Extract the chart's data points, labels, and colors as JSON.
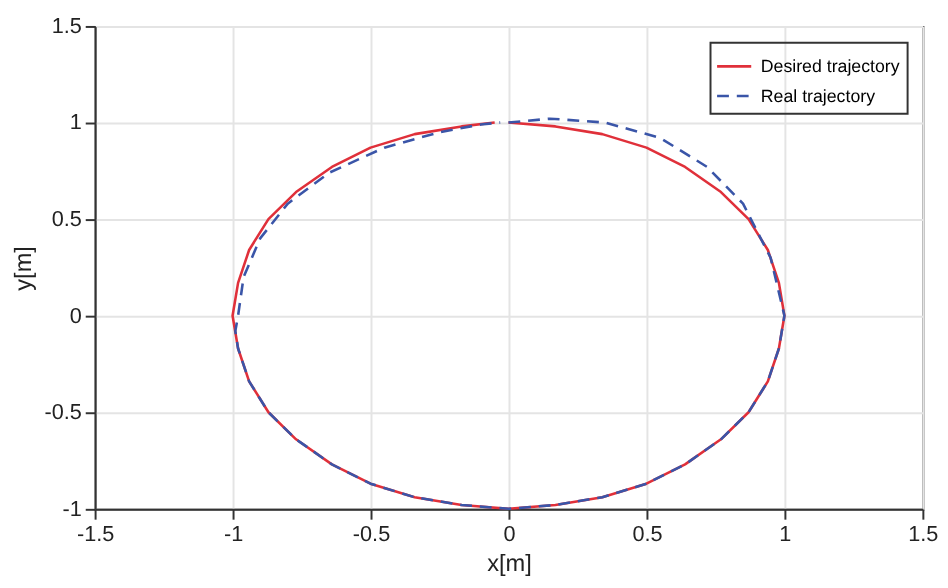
{
  "chart_data": {
    "type": "line",
    "xlabel": "x[m]",
    "ylabel": "y[m]",
    "xlim": [
      -1.5,
      1.5
    ],
    "xticks": [
      -1.5,
      -1,
      -0.5,
      0,
      0.5,
      1,
      1.5
    ],
    "ylim": [
      -1,
      1.5
    ],
    "yticks": [
      -1,
      -0.5,
      0,
      0.5,
      1,
      1.5
    ],
    "grid": true,
    "legend": "top right",
    "series": [
      {
        "name": "Desired trajectory",
        "color": "#e0303a",
        "line_style": "solid",
        "x": [
          0,
          0.17,
          0.34,
          0.5,
          0.64,
          0.77,
          0.87,
          0.94,
          0.98,
          1,
          0.98,
          0.94,
          0.87,
          0.77,
          0.64,
          0.5,
          0.34,
          0.17,
          0,
          -0.17,
          -0.34,
          -0.5,
          -0.64,
          -0.77,
          -0.87,
          -0.94,
          -0.98,
          -1,
          -0.98,
          -0.94,
          -0.87,
          -0.77,
          -0.64,
          -0.5,
          -0.34,
          -0.17,
          -0.05
        ],
        "values": [
          1,
          0.98,
          0.94,
          0.87,
          0.77,
          0.64,
          0.5,
          0.34,
          0.17,
          0,
          -0.17,
          -0.34,
          -0.5,
          -0.64,
          -0.77,
          -0.87,
          -0.94,
          -0.98,
          -1,
          -0.98,
          -0.94,
          -0.87,
          -0.77,
          -0.64,
          -0.5,
          -0.34,
          -0.17,
          0,
          0.17,
          0.34,
          0.5,
          0.64,
          0.77,
          0.87,
          0.94,
          0.98,
          1
        ]
      },
      {
        "name": "Real trajectory",
        "color": "#3a55a8",
        "line_style": "dashed",
        "x": [
          0,
          0.15,
          0.35,
          0.55,
          0.72,
          0.85,
          0.95,
          1,
          0.98,
          0.94,
          0.87,
          0.77,
          0.64,
          0.5,
          0.34,
          0.17,
          0,
          -0.17,
          -0.34,
          -0.5,
          -0.64,
          -0.77,
          -0.87,
          -0.94,
          -0.98,
          -0.99,
          -0.98,
          -0.96,
          -0.9,
          -0.8,
          -0.65,
          -0.45,
          -0.25,
          -0.1,
          -0.03
        ],
        "values": [
          1,
          1.02,
          1.0,
          0.92,
          0.77,
          0.58,
          0.3,
          0,
          -0.17,
          -0.34,
          -0.5,
          -0.64,
          -0.77,
          -0.87,
          -0.94,
          -0.98,
          -1,
          -0.98,
          -0.94,
          -0.87,
          -0.77,
          -0.64,
          -0.5,
          -0.34,
          -0.17,
          -0.08,
          0,
          0.2,
          0.4,
          0.58,
          0.74,
          0.87,
          0.95,
          0.99,
          1
        ]
      }
    ]
  }
}
